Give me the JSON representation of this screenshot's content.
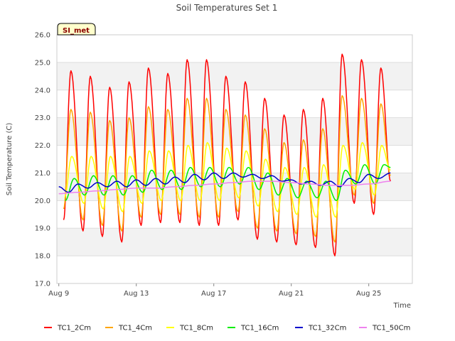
{
  "chart_data": {
    "type": "line",
    "title": "Soil Temperatures Set 1",
    "xlabel": "Time",
    "ylabel": "Soil Temperature (C)",
    "site_label": "SI_met",
    "ylim": [
      17.0,
      26.0
    ],
    "yticks": [
      "17.0",
      "18.0",
      "19.0",
      "20.0",
      "21.0",
      "22.0",
      "23.0",
      "24.0",
      "25.0",
      "26.0"
    ],
    "xlim": [
      "2023-08-08T21:36",
      "2023-08-27T06:00"
    ],
    "xticks": [
      {
        "date": "2023-08-09",
        "label": "Aug 9"
      },
      {
        "date": "2023-08-13",
        "label": "Aug 13"
      },
      {
        "date": "2023-08-17",
        "label": "Aug 17"
      },
      {
        "date": "2023-08-21",
        "label": "Aug 21"
      },
      {
        "date": "2023-08-25",
        "label": "Aug 25"
      }
    ],
    "grid": true,
    "banded_background": true,
    "legend_position": "bottom",
    "series": [
      {
        "name": "TC1_2Cm",
        "color": "#ff0000",
        "points": [
          [
            "2023-08-09 06:00",
            19.3
          ],
          [
            "2023-08-09 15:00",
            24.7
          ],
          [
            "2023-08-10 06:00",
            18.9
          ],
          [
            "2023-08-10 15:00",
            24.5
          ],
          [
            "2023-08-11 06:00",
            18.7
          ],
          [
            "2023-08-11 15:00",
            24.1
          ],
          [
            "2023-08-12 06:00",
            18.5
          ],
          [
            "2023-08-12 15:00",
            24.3
          ],
          [
            "2023-08-13 06:00",
            19.1
          ],
          [
            "2023-08-13 15:00",
            24.8
          ],
          [
            "2023-08-14 06:00",
            19.2
          ],
          [
            "2023-08-14 15:00",
            24.6
          ],
          [
            "2023-08-15 06:00",
            19.2
          ],
          [
            "2023-08-15 15:00",
            25.1
          ],
          [
            "2023-08-16 06:00",
            19.1
          ],
          [
            "2023-08-16 15:00",
            25.1
          ],
          [
            "2023-08-17 06:00",
            19.1
          ],
          [
            "2023-08-17 15:00",
            24.5
          ],
          [
            "2023-08-18 06:00",
            19.3
          ],
          [
            "2023-08-18 15:00",
            24.3
          ],
          [
            "2023-08-19 06:00",
            18.6
          ],
          [
            "2023-08-19 15:00",
            23.7
          ],
          [
            "2023-08-20 06:00",
            18.5
          ],
          [
            "2023-08-20 15:00",
            23.1
          ],
          [
            "2023-08-21 06:00",
            18.4
          ],
          [
            "2023-08-21 15:00",
            23.3
          ],
          [
            "2023-08-22 06:00",
            18.3
          ],
          [
            "2023-08-22 15:00",
            23.7
          ],
          [
            "2023-08-23 06:00",
            18.0
          ],
          [
            "2023-08-23 15:00",
            25.3
          ],
          [
            "2023-08-24 06:00",
            19.9
          ],
          [
            "2023-08-24 15:00",
            25.1
          ],
          [
            "2023-08-25 06:00",
            19.5
          ],
          [
            "2023-08-25 15:00",
            24.8
          ],
          [
            "2023-08-26 03:00",
            20.7
          ]
        ]
      },
      {
        "name": "TC1_4Cm",
        "color": "#ffa500",
        "points": [
          [
            "2023-08-09 06:00",
            19.7
          ],
          [
            "2023-08-09 15:00",
            23.3
          ],
          [
            "2023-08-10 06:00",
            19.3
          ],
          [
            "2023-08-10 15:00",
            23.2
          ],
          [
            "2023-08-11 06:00",
            19.1
          ],
          [
            "2023-08-11 15:00",
            22.9
          ],
          [
            "2023-08-12 06:00",
            18.9
          ],
          [
            "2023-08-12 15:00",
            23.0
          ],
          [
            "2023-08-13 06:00",
            19.4
          ],
          [
            "2023-08-13 15:00",
            23.4
          ],
          [
            "2023-08-14 06:00",
            19.5
          ],
          [
            "2023-08-14 15:00",
            23.3
          ],
          [
            "2023-08-15 06:00",
            19.5
          ],
          [
            "2023-08-15 15:00",
            23.7
          ],
          [
            "2023-08-16 06:00",
            19.4
          ],
          [
            "2023-08-16 15:00",
            23.7
          ],
          [
            "2023-08-17 06:00",
            19.4
          ],
          [
            "2023-08-17 15:00",
            23.3
          ],
          [
            "2023-08-18 06:00",
            19.6
          ],
          [
            "2023-08-18 15:00",
            23.1
          ],
          [
            "2023-08-19 06:00",
            19.0
          ],
          [
            "2023-08-19 15:00",
            22.6
          ],
          [
            "2023-08-20 06:00",
            18.9
          ],
          [
            "2023-08-20 15:00",
            22.1
          ],
          [
            "2023-08-21 06:00",
            18.8
          ],
          [
            "2023-08-21 15:00",
            22.2
          ],
          [
            "2023-08-22 06:00",
            18.7
          ],
          [
            "2023-08-22 15:00",
            22.6
          ],
          [
            "2023-08-23 06:00",
            18.5
          ],
          [
            "2023-08-23 15:00",
            23.8
          ],
          [
            "2023-08-24 06:00",
            20.2
          ],
          [
            "2023-08-24 15:00",
            23.7
          ],
          [
            "2023-08-25 06:00",
            19.9
          ],
          [
            "2023-08-25 15:00",
            23.5
          ],
          [
            "2023-08-26 03:00",
            20.9
          ]
        ]
      },
      {
        "name": "TC1_8Cm",
        "color": "#ffff00",
        "points": [
          [
            "2023-08-09 07:00",
            20.1
          ],
          [
            "2023-08-09 16:00",
            21.6
          ],
          [
            "2023-08-10 07:00",
            19.9
          ],
          [
            "2023-08-10 16:00",
            21.6
          ],
          [
            "2023-08-11 07:00",
            19.7
          ],
          [
            "2023-08-11 16:00",
            21.6
          ],
          [
            "2023-08-12 07:00",
            19.6
          ],
          [
            "2023-08-12 16:00",
            21.6
          ],
          [
            "2023-08-13 07:00",
            19.9
          ],
          [
            "2023-08-13 16:00",
            21.8
          ],
          [
            "2023-08-14 07:00",
            20.0
          ],
          [
            "2023-08-14 16:00",
            21.8
          ],
          [
            "2023-08-15 07:00",
            20.0
          ],
          [
            "2023-08-15 16:00",
            22.0
          ],
          [
            "2023-08-16 07:00",
            20.0
          ],
          [
            "2023-08-16 16:00",
            22.1
          ],
          [
            "2023-08-17 07:00",
            20.0
          ],
          [
            "2023-08-17 16:00",
            21.9
          ],
          [
            "2023-08-18 07:00",
            20.1
          ],
          [
            "2023-08-18 16:00",
            21.8
          ],
          [
            "2023-08-19 07:00",
            19.8
          ],
          [
            "2023-08-19 16:00",
            21.5
          ],
          [
            "2023-08-20 07:00",
            19.6
          ],
          [
            "2023-08-20 16:00",
            21.2
          ],
          [
            "2023-08-21 07:00",
            19.5
          ],
          [
            "2023-08-21 16:00",
            21.2
          ],
          [
            "2023-08-22 07:00",
            19.4
          ],
          [
            "2023-08-22 16:00",
            21.3
          ],
          [
            "2023-08-23 07:00",
            19.4
          ],
          [
            "2023-08-23 16:00",
            22.0
          ],
          [
            "2023-08-24 07:00",
            20.4
          ],
          [
            "2023-08-24 16:00",
            22.1
          ],
          [
            "2023-08-25 07:00",
            20.2
          ],
          [
            "2023-08-25 16:00",
            22.0
          ],
          [
            "2023-08-26 03:00",
            21.1
          ]
        ]
      },
      {
        "name": "TC1_16Cm",
        "color": "#00ee00",
        "points": [
          [
            "2023-08-09 08:00",
            20.0
          ],
          [
            "2023-08-09 19:00",
            20.8
          ],
          [
            "2023-08-10 08:00",
            20.2
          ],
          [
            "2023-08-10 19:00",
            20.9
          ],
          [
            "2023-08-11 08:00",
            20.2
          ],
          [
            "2023-08-11 19:00",
            20.9
          ],
          [
            "2023-08-12 08:00",
            20.2
          ],
          [
            "2023-08-12 19:00",
            20.9
          ],
          [
            "2023-08-13 08:00",
            20.3
          ],
          [
            "2023-08-13 19:00",
            21.1
          ],
          [
            "2023-08-14 08:00",
            20.4
          ],
          [
            "2023-08-14 19:00",
            21.1
          ],
          [
            "2023-08-15 08:00",
            20.4
          ],
          [
            "2023-08-15 19:00",
            21.2
          ],
          [
            "2023-08-16 08:00",
            20.5
          ],
          [
            "2023-08-16 19:00",
            21.2
          ],
          [
            "2023-08-17 08:00",
            20.5
          ],
          [
            "2023-08-17 19:00",
            21.2
          ],
          [
            "2023-08-18 08:00",
            20.6
          ],
          [
            "2023-08-18 19:00",
            21.2
          ],
          [
            "2023-08-19 08:00",
            20.4
          ],
          [
            "2023-08-19 19:00",
            21.0
          ],
          [
            "2023-08-20 08:00",
            20.2
          ],
          [
            "2023-08-20 19:00",
            20.8
          ],
          [
            "2023-08-21 08:00",
            20.1
          ],
          [
            "2023-08-21 19:00",
            20.7
          ],
          [
            "2023-08-22 08:00",
            20.1
          ],
          [
            "2023-08-22 19:00",
            20.7
          ],
          [
            "2023-08-23 08:00",
            20.0
          ],
          [
            "2023-08-23 19:00",
            21.1
          ],
          [
            "2023-08-24 08:00",
            20.6
          ],
          [
            "2023-08-24 19:00",
            21.3
          ],
          [
            "2023-08-25 08:00",
            20.6
          ],
          [
            "2023-08-25 19:00",
            21.3
          ],
          [
            "2023-08-26 03:00",
            21.2
          ]
        ]
      },
      {
        "name": "TC1_32Cm",
        "color": "#0000cc",
        "points": [
          [
            "2023-08-09 00:00",
            20.5
          ],
          [
            "2023-08-09 12:00",
            20.3
          ],
          [
            "2023-08-10 00:00",
            20.6
          ],
          [
            "2023-08-10 12:00",
            20.45
          ],
          [
            "2023-08-11 00:00",
            20.65
          ],
          [
            "2023-08-11 12:00",
            20.5
          ],
          [
            "2023-08-12 00:00",
            20.7
          ],
          [
            "2023-08-12 12:00",
            20.5
          ],
          [
            "2023-08-13 00:00",
            20.75
          ],
          [
            "2023-08-13 12:00",
            20.55
          ],
          [
            "2023-08-14 00:00",
            20.8
          ],
          [
            "2023-08-14 12:00",
            20.6
          ],
          [
            "2023-08-15 00:00",
            20.85
          ],
          [
            "2023-08-15 12:00",
            20.65
          ],
          [
            "2023-08-16 00:00",
            20.95
          ],
          [
            "2023-08-16 12:00",
            20.75
          ],
          [
            "2023-08-17 00:00",
            21.0
          ],
          [
            "2023-08-17 12:00",
            20.8
          ],
          [
            "2023-08-18 00:00",
            21.0
          ],
          [
            "2023-08-18 12:00",
            20.85
          ],
          [
            "2023-08-19 00:00",
            20.95
          ],
          [
            "2023-08-19 12:00",
            20.8
          ],
          [
            "2023-08-20 00:00",
            20.9
          ],
          [
            "2023-08-20 12:00",
            20.7
          ],
          [
            "2023-08-21 00:00",
            20.75
          ],
          [
            "2023-08-21 12:00",
            20.6
          ],
          [
            "2023-08-22 00:00",
            20.7
          ],
          [
            "2023-08-22 12:00",
            20.55
          ],
          [
            "2023-08-23 00:00",
            20.7
          ],
          [
            "2023-08-23 12:00",
            20.5
          ],
          [
            "2023-08-24 00:00",
            20.8
          ],
          [
            "2023-08-24 12:00",
            20.65
          ],
          [
            "2023-08-25 00:00",
            20.95
          ],
          [
            "2023-08-25 12:00",
            20.8
          ],
          [
            "2023-08-26 03:00",
            21.0
          ]
        ]
      },
      {
        "name": "TC1_50Cm",
        "color": "#ee82ee",
        "points": [
          [
            "2023-08-09 00:00",
            20.25
          ],
          [
            "2023-08-10 00:00",
            20.3
          ],
          [
            "2023-08-11 00:00",
            20.35
          ],
          [
            "2023-08-12 00:00",
            20.4
          ],
          [
            "2023-08-13 00:00",
            20.45
          ],
          [
            "2023-08-14 00:00",
            20.45
          ],
          [
            "2023-08-15 00:00",
            20.5
          ],
          [
            "2023-08-16 00:00",
            20.55
          ],
          [
            "2023-08-17 00:00",
            20.6
          ],
          [
            "2023-08-18 00:00",
            20.65
          ],
          [
            "2023-08-19 00:00",
            20.7
          ],
          [
            "2023-08-20 00:00",
            20.7
          ],
          [
            "2023-08-21 00:00",
            20.65
          ],
          [
            "2023-08-22 00:00",
            20.6
          ],
          [
            "2023-08-23 00:00",
            20.55
          ],
          [
            "2023-08-24 00:00",
            20.55
          ],
          [
            "2023-08-25 00:00",
            20.6
          ],
          [
            "2023-08-26 03:00",
            20.7
          ]
        ]
      }
    ]
  }
}
